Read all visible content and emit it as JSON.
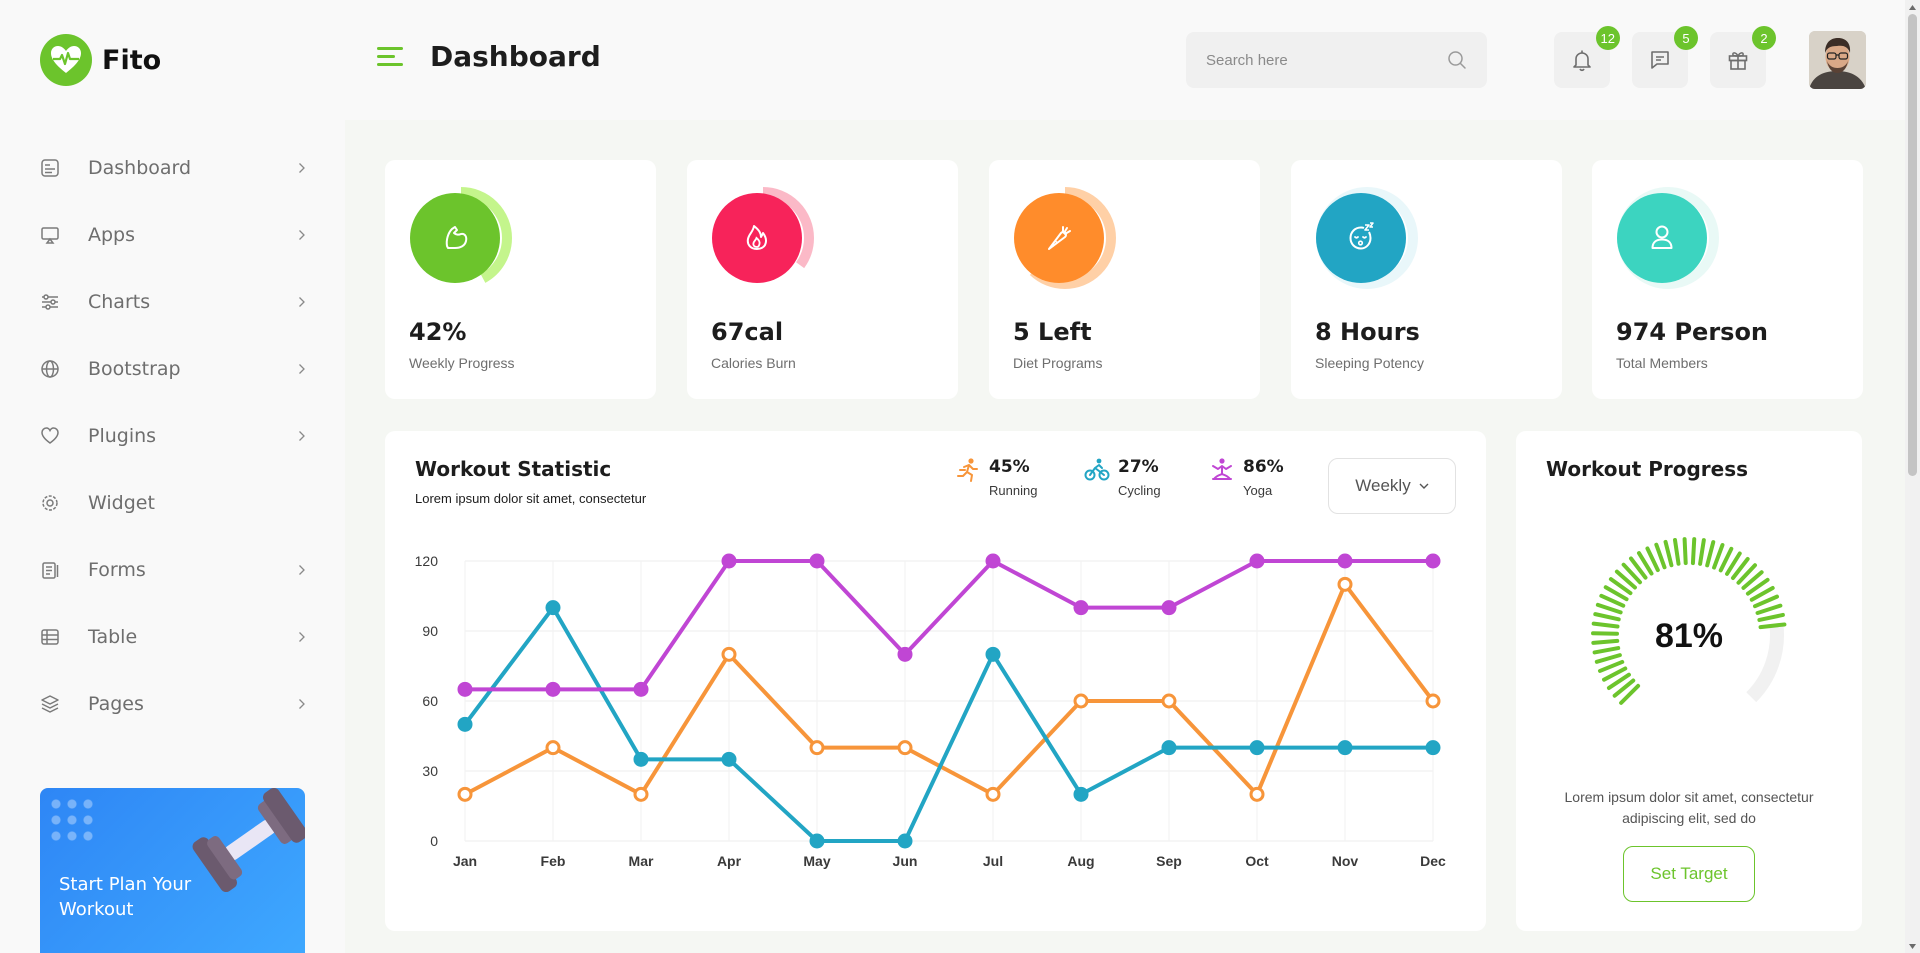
{
  "app": {
    "name": "Fito"
  },
  "header": {
    "title": "Dashboard",
    "search_placeholder": "Search here",
    "notifications_count": "12",
    "messages_count": "5",
    "gifts_count": "2"
  },
  "sidebar": {
    "items": [
      {
        "label": "Dashboard",
        "icon": "dashboard-icon",
        "has_submenu": true
      },
      {
        "label": "Apps",
        "icon": "apps-icon",
        "has_submenu": true
      },
      {
        "label": "Charts",
        "icon": "charts-icon",
        "has_submenu": true
      },
      {
        "label": "Bootstrap",
        "icon": "globe-icon",
        "has_submenu": true
      },
      {
        "label": "Plugins",
        "icon": "heart-icon",
        "has_submenu": true
      },
      {
        "label": "Widget",
        "icon": "settings-icon",
        "has_submenu": false
      },
      {
        "label": "Forms",
        "icon": "forms-icon",
        "has_submenu": true
      },
      {
        "label": "Table",
        "icon": "table-icon",
        "has_submenu": true
      },
      {
        "label": "Pages",
        "icon": "layers-icon",
        "has_submenu": true
      }
    ],
    "promo": {
      "text": "Start Plan Your Workout"
    }
  },
  "stats": [
    {
      "value": "42%",
      "label": "Weekly Progress",
      "icon": "muscle-icon",
      "color": "#6cc42c",
      "ring_color": "#c4f58c",
      "ring_fraction": 0.42
    },
    {
      "value": "67cal",
      "label": "Calories Burn",
      "icon": "flame-icon",
      "color": "#f7235a",
      "ring_color": "#fbb9c7",
      "ring_fraction": 0.35
    },
    {
      "value": "5 Left",
      "label": "Diet Programs",
      "icon": "carrot-icon",
      "color": "#ff8c2b",
      "ring_color": "#ffd0a6",
      "ring_fraction": 0.62
    },
    {
      "value": "8 Hours",
      "label": "Sleeping Potency",
      "icon": "sleep-icon",
      "color": "#22a5c4",
      "ring_color": "#e9f7fa",
      "ring_fraction": 0
    },
    {
      "value": "974 Person",
      "label": "Total Members",
      "icon": "person-icon",
      "color": "#3cd4c0",
      "ring_color": "#e9f9f6",
      "ring_fraction": 0
    }
  ],
  "workout_statistic": {
    "title": "Workout Statistic",
    "subtitle": "Lorem ipsum dolor sit amet, consectetur",
    "legend": [
      {
        "pct": "45%",
        "name": "Running",
        "color": "#f7953a",
        "icon": "running-icon"
      },
      {
        "pct": "27%",
        "name": "Cycling",
        "color": "#22a5c4",
        "icon": "cycling-icon"
      },
      {
        "pct": "86%",
        "name": "Yoga",
        "color": "#c046d4",
        "icon": "yoga-icon"
      }
    ],
    "period": "Weekly"
  },
  "chart_data": {
    "type": "line",
    "categories": [
      "Jan",
      "Feb",
      "Mar",
      "Apr",
      "May",
      "Jun",
      "Jul",
      "Aug",
      "Sep",
      "Oct",
      "Nov",
      "Dec"
    ],
    "yticks": [
      0,
      30,
      60,
      90,
      120
    ],
    "ylim": [
      0,
      120
    ],
    "grid": true,
    "series": [
      {
        "name": "Running",
        "color": "#f7953a",
        "marker": "hollow",
        "values": [
          20,
          40,
          20,
          80,
          40,
          40,
          20,
          60,
          60,
          20,
          110,
          60
        ]
      },
      {
        "name": "Cycling",
        "color": "#22a5c4",
        "marker": "filled",
        "values": [
          50,
          100,
          35,
          35,
          0,
          0,
          80,
          20,
          40,
          40,
          40,
          40
        ]
      },
      {
        "name": "Yoga",
        "color": "#c046d4",
        "marker": "filled",
        "values": [
          65,
          65,
          65,
          120,
          120,
          80,
          120,
          100,
          100,
          120,
          120,
          120
        ]
      }
    ]
  },
  "workout_progress": {
    "title": "Workout Progress",
    "percent_label": "81%",
    "percent": 81,
    "description": "Lorem ipsum dolor sit amet, consectetur adipiscing elit, sed do",
    "button": "Set Target",
    "color": "#6cc42c"
  }
}
